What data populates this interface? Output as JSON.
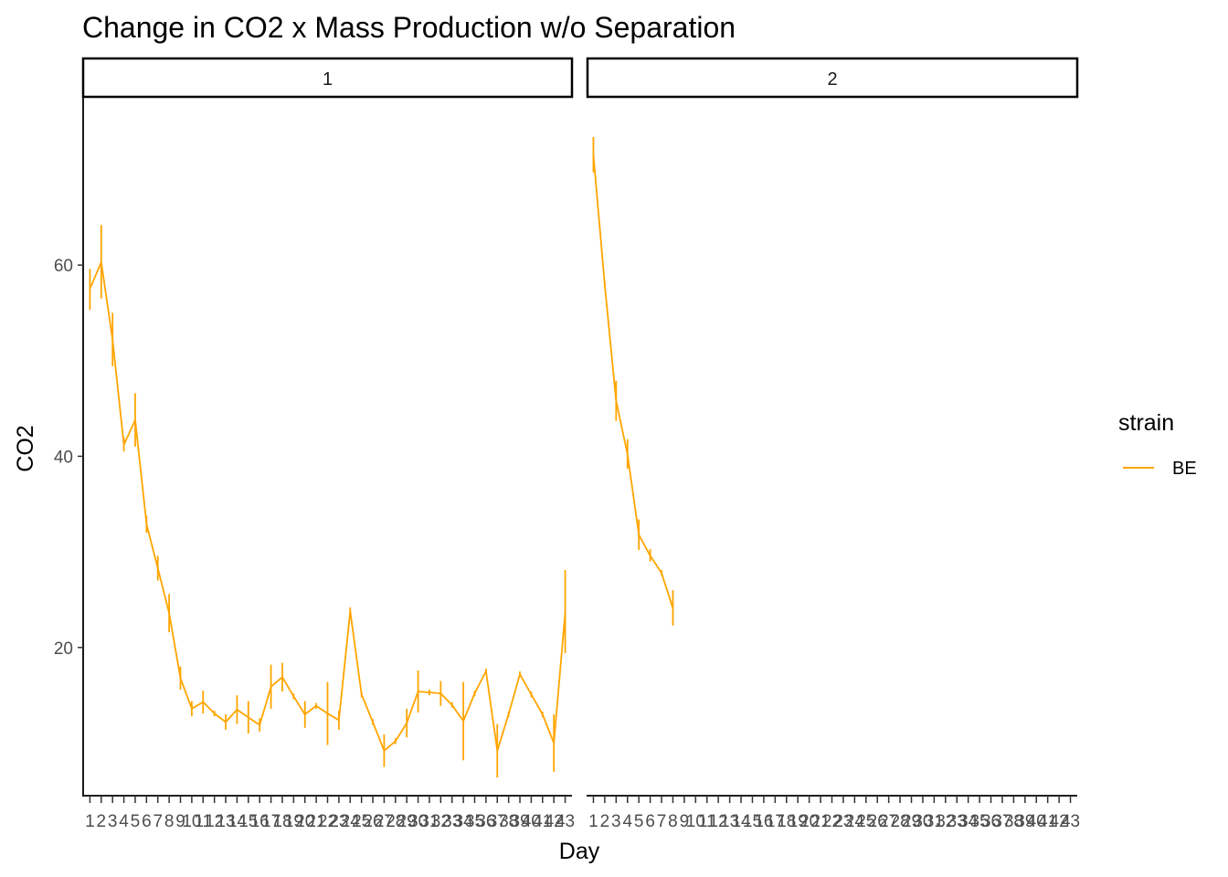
{
  "chart_data": {
    "type": "line",
    "title": "Change in CO2 x Mass Production w/o Separation",
    "xlabel": "Day",
    "ylabel": "CO2",
    "x_categories": [
      "1",
      "2",
      "3",
      "4",
      "5",
      "6",
      "7",
      "8",
      "9",
      "10",
      "11",
      "12",
      "13",
      "14",
      "15",
      "16",
      "17",
      "18",
      "19",
      "20",
      "21",
      "22",
      "23",
      "24",
      "25",
      "26",
      "27",
      "28",
      "29",
      "30",
      "31",
      "32",
      "33",
      "34",
      "35",
      "36",
      "37",
      "38",
      "39",
      "40",
      "41",
      "42",
      "43"
    ],
    "ylim": [
      4.5,
      77.5
    ],
    "yticks": [
      20,
      40,
      60
    ],
    "grid": false,
    "legend": {
      "title": "strain",
      "position": "right",
      "entries": [
        {
          "label": "BE",
          "color": "#FFA500"
        }
      ]
    },
    "facets": [
      {
        "label": "1",
        "series": [
          {
            "name": "BE",
            "color": "#FFA500",
            "points": [
              {
                "x": 1,
                "y": 57.5,
                "lo": 55.3,
                "hi": 59.6
              },
              {
                "x": 2,
                "y": 60.3,
                "lo": 56.5,
                "hi": 64.2
              },
              {
                "x": 3,
                "y": 52.2,
                "lo": 49.4,
                "hi": 55.0
              },
              {
                "x": 4,
                "y": 41.2,
                "lo": 40.5,
                "hi": 42.0
              },
              {
                "x": 5,
                "y": 43.8,
                "lo": 41.0,
                "hi": 46.6
              },
              {
                "x": 6,
                "y": 32.9,
                "lo": 32.0,
                "hi": 33.8
              },
              {
                "x": 7,
                "y": 28.3,
                "lo": 27.0,
                "hi": 29.6
              },
              {
                "x": 8,
                "y": 23.6,
                "lo": 21.6,
                "hi": 25.6
              },
              {
                "x": 9,
                "y": 16.8,
                "lo": 15.6,
                "hi": 18.0
              },
              {
                "x": 10,
                "y": 13.6,
                "lo": 12.8,
                "hi": 14.4
              },
              {
                "x": 11,
                "y": 14.3,
                "lo": 13.1,
                "hi": 15.5
              },
              {
                "x": 12,
                "y": 13.1,
                "lo": 12.8,
                "hi": 13.4
              },
              {
                "x": 13,
                "y": 12.2,
                "lo": 11.4,
                "hi": 13.0
              },
              {
                "x": 14,
                "y": 13.5,
                "lo": 12.0,
                "hi": 15.0
              },
              {
                "x": 15,
                "y": 12.7,
                "lo": 11.0,
                "hi": 14.4
              },
              {
                "x": 16,
                "y": 11.9,
                "lo": 11.2,
                "hi": 12.6
              },
              {
                "x": 17,
                "y": 15.9,
                "lo": 13.6,
                "hi": 18.2
              },
              {
                "x": 18,
                "y": 16.9,
                "lo": 15.4,
                "hi": 18.4
              },
              {
                "x": 19,
                "y": 14.9,
                "lo": 14.6,
                "hi": 15.2
              },
              {
                "x": 20,
                "y": 13.0,
                "lo": 11.6,
                "hi": 14.4
              },
              {
                "x": 21,
                "y": 13.9,
                "lo": 13.6,
                "hi": 14.2
              },
              {
                "x": 22,
                "y": 13.1,
                "lo": 9.8,
                "hi": 16.4
              },
              {
                "x": 23,
                "y": 12.4,
                "lo": 11.4,
                "hi": 13.4
              },
              {
                "x": 24,
                "y": 23.8,
                "lo": 23.4,
                "hi": 24.2
              },
              {
                "x": 25,
                "y": 15.1,
                "lo": 14.8,
                "hi": 15.4
              },
              {
                "x": 26,
                "y": 12.2,
                "lo": 11.9,
                "hi": 12.5
              },
              {
                "x": 27,
                "y": 9.2,
                "lo": 7.5,
                "hi": 10.9
              },
              {
                "x": 28,
                "y": 10.2,
                "lo": 9.9,
                "hi": 10.5
              },
              {
                "x": 29,
                "y": 12.1,
                "lo": 10.6,
                "hi": 13.6
              },
              {
                "x": 30,
                "y": 15.4,
                "lo": 13.2,
                "hi": 17.6
              },
              {
                "x": 31,
                "y": 15.3,
                "lo": 15.0,
                "hi": 15.6
              },
              {
                "x": 32,
                "y": 15.2,
                "lo": 13.9,
                "hi": 16.5
              },
              {
                "x": 33,
                "y": 14.0,
                "lo": 13.7,
                "hi": 14.3
              },
              {
                "x": 34,
                "y": 12.3,
                "lo": 8.2,
                "hi": 16.4
              },
              {
                "x": 35,
                "y": 15.2,
                "lo": 14.9,
                "hi": 15.5
              },
              {
                "x": 36,
                "y": 17.5,
                "lo": 17.2,
                "hi": 17.8
              },
              {
                "x": 37,
                "y": 9.2,
                "lo": 6.4,
                "hi": 12.0
              },
              {
                "x": 38,
                "y": 13.0,
                "lo": 12.7,
                "hi": 13.3
              },
              {
                "x": 39,
                "y": 17.2,
                "lo": 16.9,
                "hi": 17.5
              },
              {
                "x": 40,
                "y": 15.1,
                "lo": 14.8,
                "hi": 15.4
              },
              {
                "x": 41,
                "y": 13.0,
                "lo": 12.7,
                "hi": 13.3
              },
              {
                "x": 42,
                "y": 10.0,
                "lo": 7.0,
                "hi": 13.0
              },
              {
                "x": 43,
                "y": 23.7,
                "lo": 19.4,
                "hi": 28.1
              }
            ]
          }
        ]
      },
      {
        "label": "2",
        "series": [
          {
            "name": "BE",
            "color": "#FFA500",
            "points": [
              {
                "x": 1,
                "y": 71.5,
                "lo": 69.7,
                "hi": 73.4
              },
              {
                "x": 2,
                "y": 57.9,
                "lo": 57.6,
                "hi": 58.2
              },
              {
                "x": 3,
                "y": 45.8,
                "lo": 43.7,
                "hi": 47.9
              },
              {
                "x": 4,
                "y": 40.2,
                "lo": 38.7,
                "hi": 41.8
              },
              {
                "x": 5,
                "y": 31.8,
                "lo": 30.2,
                "hi": 33.4
              },
              {
                "x": 6,
                "y": 29.6,
                "lo": 29.0,
                "hi": 30.3
              },
              {
                "x": 7,
                "y": 27.8,
                "lo": 27.5,
                "hi": 28.1
              },
              {
                "x": 8,
                "y": 24.1,
                "lo": 22.3,
                "hi": 26.0
              }
            ]
          }
        ]
      }
    ]
  }
}
